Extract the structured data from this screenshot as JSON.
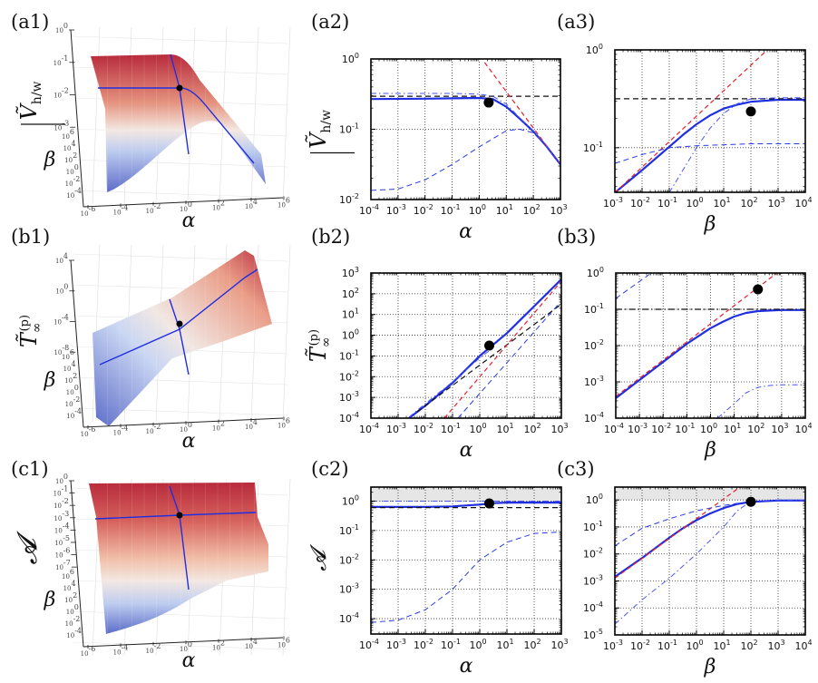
{
  "figure": {
    "panel_labels": [
      "(a1)",
      "(a2)",
      "(a3)",
      "(b1)",
      "(b2)",
      "(b3)",
      "(c1)",
      "(c2)",
      "(c3)"
    ],
    "colors": {
      "solid": "#1f2fe0",
      "red_dashed": "#e8202a",
      "black_dashed": "#111111",
      "blue_dashed": "#2a3ae6",
      "blue_dashdot": "#4a56f0",
      "marker": "#000000",
      "shade": "#e6e6e6",
      "surface_high": "#b2182b",
      "surface_mid": "#f2e6e0",
      "surface_low": "#4e5fc4"
    }
  },
  "chart_data": [
    {
      "id": "a1",
      "type": "surface3d",
      "zlabel": "Ṽ h/w (overbar)",
      "ylabel": "β",
      "xlabel": "α",
      "zticks": [
        "10^0",
        "10^-1",
        "10^-2",
        "10^-3"
      ],
      "yticks": [
        "10^6",
        "10^4",
        "10^2",
        "10^0",
        "10^-2",
        "10^-4"
      ],
      "xticks": [
        "10^-6",
        "10^-4",
        "10^-2",
        "10^0",
        "10^2",
        "10^4",
        "10^6"
      ],
      "shape": "plateau-then-decline"
    },
    {
      "id": "a2",
      "type": "line",
      "xscale": "log",
      "yscale": "log",
      "xlabel": "α",
      "ylabel": "Ṽ h/w",
      "xlim": [
        0.0001,
        1000
      ],
      "ylim": [
        0.01,
        1
      ],
      "xticks": [
        -4,
        -3,
        -2,
        -1,
        0,
        1,
        2,
        3
      ],
      "yticks": [
        -2,
        -1,
        0
      ],
      "series": [
        {
          "name": "solid",
          "style": "solid",
          "x": [
            -4,
            -2,
            0,
            0.5,
            1,
            1.5,
            2,
            2.5,
            3
          ],
          "y": [
            -0.57,
            -0.565,
            -0.555,
            -0.57,
            -0.68,
            -0.85,
            -1.03,
            -1.25,
            -1.5
          ]
        },
        {
          "name": "black-dashed",
          "style": "dashed-black",
          "x": [
            -4,
            3
          ],
          "y": [
            -0.53,
            -0.53
          ]
        },
        {
          "name": "red-dashed",
          "style": "dashed-red",
          "x": [
            0.2,
            3
          ],
          "y": [
            -0.05,
            -1.5
          ]
        },
        {
          "name": "blue-dashdot",
          "style": "dashdot-blue",
          "x": [
            -4,
            -1,
            0,
            0.5,
            1,
            1.5,
            2,
            2.5,
            3
          ],
          "y": [
            -0.49,
            -0.49,
            -0.5,
            -0.53,
            -0.64,
            -0.84,
            -1.02,
            -1.25,
            -1.5
          ]
        },
        {
          "name": "blue-dashed",
          "style": "dashed-blue",
          "x": [
            -4,
            -3,
            -2,
            -1,
            0,
            1,
            1.5,
            2,
            2.5,
            3
          ],
          "y": [
            -1.87,
            -1.85,
            -1.72,
            -1.5,
            -1.25,
            -1.02,
            -1.0,
            -1.05,
            -1.25,
            -1.5
          ]
        }
      ],
      "marker": {
        "x": 0.35,
        "y": -0.62
      }
    },
    {
      "id": "a3",
      "type": "line",
      "xscale": "log",
      "yscale": "log",
      "xlabel": "β",
      "ylabel": "",
      "xlim": [
        0.001,
        10000
      ],
      "ylim": [
        0.035,
        1
      ],
      "xticks": [
        -3,
        -2,
        -1,
        0,
        1,
        2,
        3,
        4
      ],
      "yticks": [
        -1,
        0
      ],
      "series": [
        {
          "name": "solid",
          "style": "solid",
          "x": [
            -3,
            -2,
            -1,
            -0.5,
            0,
            0.5,
            1,
            1.5,
            2,
            3,
            4
          ],
          "y": [
            -1.46,
            -1.23,
            -0.99,
            -0.87,
            -0.76,
            -0.67,
            -0.6,
            -0.56,
            -0.53,
            -0.51,
            -0.51
          ]
        },
        {
          "name": "black-dashed",
          "style": "dashed-black",
          "x": [
            -3,
            4
          ],
          "y": [
            -0.5,
            -0.5
          ]
        },
        {
          "name": "red-dashed",
          "style": "dashed-red",
          "x": [
            -3,
            2.6
          ],
          "y": [
            -1.46,
            0.0
          ]
        },
        {
          "name": "blue-dashed",
          "style": "dashed-blue",
          "x": [
            -3,
            -2,
            -1,
            0,
            1,
            2,
            3,
            4
          ],
          "y": [
            -1.16,
            -1.07,
            -1.0,
            -0.98,
            -0.97,
            -0.96,
            -0.96,
            -0.96
          ]
        },
        {
          "name": "blue-dashdot",
          "style": "dashdot-blue",
          "x": [
            -1,
            0,
            0.5,
            1,
            1.5,
            2,
            3,
            4
          ],
          "y": [
            -1.46,
            -1.0,
            -0.8,
            -0.65,
            -0.55,
            -0.5,
            -0.49,
            -0.49
          ]
        }
      ],
      "marker": {
        "x": 2.0,
        "y": -0.63
      }
    },
    {
      "id": "b1",
      "type": "surface3d",
      "zlabel": "T̃∞(p)",
      "ylabel": "β",
      "xlabel": "α",
      "zticks": [
        "10^4",
        "10^0",
        "10^-4",
        "10^-8"
      ],
      "yticks": [
        "10^6",
        "10^4",
        "10^2",
        "10^0",
        "10^-2",
        "10^-4"
      ],
      "xticks": [
        "10^-6",
        "10^-4",
        "10^-2",
        "10^0",
        "10^2",
        "10^4",
        "10^6"
      ],
      "shape": "increasing-ramp"
    },
    {
      "id": "b2",
      "type": "line",
      "xscale": "log",
      "yscale": "log",
      "xlabel": "α",
      "ylabel": "T̃∞(p)",
      "xlim": [
        0.0001,
        1000
      ],
      "ylim": [
        0.0001,
        1000
      ],
      "xticks": [
        -4,
        -3,
        -2,
        -1,
        0,
        1,
        2,
        3
      ],
      "yticks": [
        -4,
        -3,
        -2,
        -1,
        0,
        1,
        2,
        3
      ],
      "series": [
        {
          "name": "solid",
          "style": "solid",
          "x": [
            -2.6,
            -2,
            -1,
            0,
            1,
            2,
            3
          ],
          "y": [
            -4,
            -3.4,
            -2.3,
            -1.0,
            0.1,
            1.4,
            2.7
          ]
        },
        {
          "name": "blue-dashdot",
          "style": "dashdot-blue",
          "x": [
            -2.6,
            -2,
            -1,
            0,
            0.5
          ],
          "y": [
            -3.95,
            -3.3,
            -2.25,
            -1.1,
            -0.6
          ]
        },
        {
          "name": "black-dashed",
          "style": "dashed-black",
          "x": [
            -2.3,
            3
          ],
          "y": [
            -3.7,
            1.5
          ]
        },
        {
          "name": "red-dashed",
          "style": "dashed-red",
          "x": [
            -1.3,
            3
          ],
          "y": [
            -4,
            2.6
          ]
        },
        {
          "name": "blue-dashed",
          "style": "dashed-blue",
          "x": [
            -0.8,
            2.9
          ],
          "y": [
            -4,
            1.5
          ]
        }
      ],
      "marker": {
        "x": 0.35,
        "y": -0.5
      }
    },
    {
      "id": "b3",
      "type": "line",
      "xscale": "log",
      "yscale": "log",
      "xlabel": "β",
      "ylabel": "",
      "xlim": [
        0.0001,
        10000
      ],
      "ylim": [
        0.0001,
        1
      ],
      "xticks": [
        -4,
        -3,
        -2,
        -1,
        0,
        1,
        2,
        3,
        4
      ],
      "yticks": [
        -4,
        -3,
        -2,
        -1,
        0
      ],
      "series": [
        {
          "name": "solid",
          "style": "solid",
          "x": [
            -4,
            -3,
            -2,
            -1,
            0,
            0.5,
            1,
            1.5,
            2,
            3,
            4
          ],
          "y": [
            -3.45,
            -2.95,
            -2.45,
            -1.95,
            -1.52,
            -1.35,
            -1.2,
            -1.1,
            -1.05,
            -1.02,
            -1.02
          ]
        },
        {
          "name": "black-dashdot",
          "style": "dashdot-black",
          "x": [
            -4,
            4
          ],
          "y": [
            -1.0,
            -1.0
          ]
        },
        {
          "name": "red-dashed",
          "style": "dashed-red",
          "x": [
            -4,
            2.8
          ],
          "y": [
            -3.4,
            0.0
          ]
        },
        {
          "name": "blue-dashed",
          "style": "dashed-blue",
          "x": [
            -4,
            -2.5
          ],
          "y": [
            -0.7,
            0.0
          ]
        },
        {
          "name": "blue-dashdot",
          "style": "dashdot-blue",
          "x": [
            0.3,
            1,
            1.5,
            2,
            2.5,
            3,
            4
          ],
          "y": [
            -4,
            -3.6,
            -3.3,
            -3.15,
            -3.1,
            -3.08,
            -3.08
          ]
        }
      ],
      "marker": {
        "x": 2.0,
        "y": -0.45
      }
    },
    {
      "id": "c1",
      "type": "surface3d",
      "zlabel": "A",
      "ylabel": "β",
      "xlabel": "α",
      "zticks": [
        "10^0",
        "10^-1",
        "10^-2",
        "10^-3",
        "10^-4",
        "10^-5",
        "10^-6",
        "10^-7"
      ],
      "yticks": [
        "10^6",
        "10^4",
        "10^2",
        "10^0",
        "10^-2",
        "10^-4"
      ],
      "xticks": [
        "10^-6",
        "10^-4",
        "10^-2",
        "10^0",
        "10^2",
        "10^4",
        "10^6"
      ],
      "shape": "plateau-high"
    },
    {
      "id": "c2",
      "type": "line",
      "xscale": "log",
      "yscale": "log",
      "xlabel": "α",
      "ylabel": "A",
      "xlim": [
        0.0001,
        1000
      ],
      "ylim": [
        3e-05,
        3
      ],
      "xticks": [
        -4,
        -3,
        -2,
        -1,
        0,
        1,
        2,
        3
      ],
      "yticks": [
        -4,
        -3,
        -2,
        -1,
        0
      ],
      "shaded_region": [
        0,
        0.48
      ],
      "series": [
        {
          "name": "solid",
          "style": "solid",
          "x": [
            -4,
            -2,
            -1,
            0,
            0.5,
            1,
            2,
            3
          ],
          "y": [
            -0.2,
            -0.2,
            -0.18,
            -0.12,
            -0.07,
            -0.05,
            -0.05,
            -0.05
          ]
        },
        {
          "name": "black-dashed",
          "style": "dashed-black",
          "x": [
            -4,
            3
          ],
          "y": [
            -0.22,
            -0.22
          ]
        },
        {
          "name": "blue-dashdot",
          "style": "dashdot-blue",
          "x": [
            -4,
            3
          ],
          "y": [
            0.0,
            0.0
          ]
        },
        {
          "name": "blue-dashed",
          "style": "dashed-blue",
          "x": [
            -4,
            -3,
            -2,
            -1,
            0,
            1,
            2,
            3
          ],
          "y": [
            -4.13,
            -4.05,
            -3.7,
            -3.0,
            -2.0,
            -1.4,
            -1.1,
            -1.05
          ]
        }
      ],
      "marker": {
        "x": 0.35,
        "y": -0.08
      }
    },
    {
      "id": "c3",
      "type": "line",
      "xscale": "log",
      "yscale": "log",
      "xlabel": "β",
      "ylabel": "",
      "xlim": [
        0.001,
        10000
      ],
      "ylim": [
        1e-05,
        3
      ],
      "xticks": [
        -3,
        -2,
        -1,
        0,
        1,
        2,
        3,
        4
      ],
      "yticks": [
        -5,
        -4,
        -3,
        -2,
        -1,
        0
      ],
      "shaded_region": [
        0,
        0.48
      ],
      "series": [
        {
          "name": "solid",
          "style": "solid",
          "x": [
            -3,
            -2,
            -1,
            -0.5,
            0,
            0.5,
            1,
            1.5,
            2,
            3,
            4
          ],
          "y": [
            -2.85,
            -2.15,
            -1.4,
            -1.05,
            -0.75,
            -0.5,
            -0.3,
            -0.15,
            -0.07,
            -0.02,
            -0.02
          ]
        },
        {
          "name": "red-dashed",
          "style": "dashed-red",
          "x": [
            -3,
            1.6
          ],
          "y": [
            -2.9,
            0.48
          ]
        },
        {
          "name": "blue-dashed",
          "style": "dashed-blue",
          "x": [
            -3,
            -2,
            -1,
            0,
            1,
            2
          ],
          "y": [
            -1.7,
            -1.05,
            -0.7,
            -0.4,
            -0.2,
            -0.05
          ]
        },
        {
          "name": "blue-dashdot",
          "style": "dashdot-blue",
          "x": [
            -3,
            -2,
            -1,
            0,
            1,
            1.5,
            2,
            3,
            4
          ],
          "y": [
            -4.6,
            -3.7,
            -2.9,
            -2.0,
            -1.0,
            -0.4,
            -0.05,
            0.0,
            0.0
          ]
        }
      ],
      "marker": {
        "x": 2.0,
        "y": -0.07
      }
    }
  ]
}
